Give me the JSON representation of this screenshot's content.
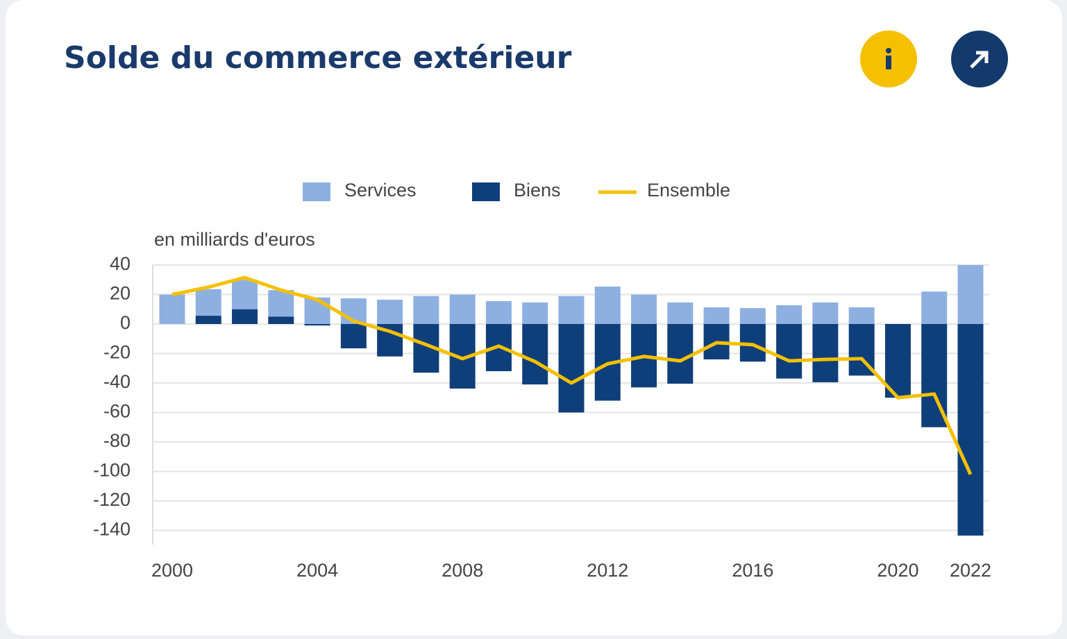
{
  "chart_data": {
    "type": "bar",
    "title": "Solde du commerce extérieur",
    "ylabel": "en milliards d'euros",
    "x": [
      2000,
      2001,
      2002,
      2003,
      2004,
      2005,
      2006,
      2007,
      2008,
      2009,
      2010,
      2011,
      2012,
      2013,
      2014,
      2015,
      2016,
      2017,
      2018,
      2019,
      2020,
      2021,
      2022
    ],
    "xticks": [
      2000,
      2004,
      2008,
      2012,
      2016,
      2020,
      2022
    ],
    "ylim": [
      -144,
      40
    ],
    "yticks": [
      40,
      20,
      0,
      -20,
      -40,
      -60,
      -80,
      -100,
      -120,
      -140
    ],
    "grid": true,
    "legend": "top",
    "series": [
      {
        "name": "Services",
        "type": "bar",
        "color": "#8eb0e0",
        "values": [
          20,
          18,
          20,
          18,
          18,
          17.4,
          16.5,
          19,
          20,
          15.5,
          14.6,
          19,
          25.4,
          20,
          14.6,
          11.3,
          10.8,
          12.7,
          14.6,
          11.3,
          0,
          22,
          40
        ]
      },
      {
        "name": "Biens",
        "type": "bar",
        "color": "#0f3f7a",
        "values": [
          0,
          5.6,
          10,
          5,
          -1,
          -16.5,
          -22,
          -33,
          -43.8,
          -32,
          -41,
          -60,
          -52,
          -43,
          -40.5,
          -24,
          -25.5,
          -37,
          -39.5,
          -35,
          -50,
          -70,
          -143.5
        ]
      },
      {
        "name": "Ensemble",
        "type": "line",
        "color": "#f5c000",
        "values": [
          20,
          25,
          31.5,
          23,
          16.5,
          2,
          -5,
          -14,
          -23.5,
          -15,
          -25.5,
          -40,
          -27,
          -22,
          -25,
          -12.7,
          -14,
          -25,
          -24,
          -23.5,
          -50,
          -47.5,
          -102
        ]
      }
    ]
  }
}
